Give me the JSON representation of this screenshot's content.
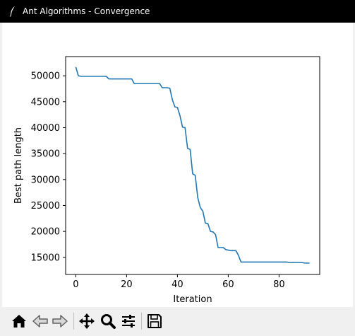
{
  "window": {
    "title": "Ant Algorithms - Convergence",
    "icon": "feather-icon"
  },
  "toolbar": {
    "buttons": [
      {
        "name": "home",
        "icon": "home-icon"
      },
      {
        "name": "back",
        "icon": "arrow-left-icon"
      },
      {
        "name": "forward",
        "icon": "arrow-right-icon"
      },
      {
        "name": "pan",
        "icon": "move-icon"
      },
      {
        "name": "zoom",
        "icon": "zoom-icon"
      },
      {
        "name": "configure-subplots",
        "icon": "sliders-icon"
      },
      {
        "name": "save",
        "icon": "floppy-disk-icon"
      }
    ]
  },
  "chart_data": {
    "type": "line",
    "title": "",
    "xlabel": "Iteration",
    "ylabel": "Best path length",
    "xlim": [
      -4,
      96
    ],
    "ylim": [
      11700,
      53700
    ],
    "xticks": [
      0,
      20,
      40,
      60,
      80
    ],
    "yticks": [
      15000,
      20000,
      25000,
      30000,
      35000,
      40000,
      45000,
      50000
    ],
    "grid": false,
    "color": "#1f77b4",
    "x": [
      0,
      1,
      2,
      3,
      4,
      5,
      6,
      7,
      8,
      9,
      10,
      11,
      12,
      13,
      14,
      15,
      16,
      17,
      18,
      19,
      20,
      21,
      22,
      23,
      24,
      25,
      26,
      27,
      28,
      29,
      30,
      31,
      32,
      33,
      34,
      35,
      36,
      37,
      38,
      39,
      40,
      41,
      42,
      43,
      44,
      45,
      46,
      47,
      48,
      49,
      50,
      51,
      52,
      53,
      54,
      55,
      56,
      57,
      58,
      59,
      60,
      61,
      62,
      63,
      64,
      65,
      66,
      67,
      68,
      69,
      70,
      71,
      72,
      73,
      74,
      75,
      76,
      77,
      78,
      79,
      80,
      81,
      82,
      83,
      84,
      85,
      86,
      87,
      88,
      89,
      90,
      91,
      92
    ],
    "y": [
      51700,
      50000,
      49900,
      49900,
      49900,
      49900,
      49900,
      49900,
      49900,
      49900,
      49900,
      49900,
      49900,
      49400,
      49400,
      49400,
      49400,
      49400,
      49400,
      49400,
      49400,
      49400,
      49400,
      48500,
      48500,
      48500,
      48500,
      48500,
      48500,
      48500,
      48500,
      48500,
      48500,
      48500,
      47700,
      47700,
      47700,
      47600,
      45400,
      44000,
      43900,
      42300,
      40100,
      40000,
      36000,
      35800,
      31100,
      30800,
      26500,
      24600,
      23900,
      21600,
      21500,
      20000,
      19900,
      19400,
      16900,
      16900,
      16900,
      16500,
      16400,
      16300,
      16300,
      16300,
      15400,
      14100,
      14100,
      14100,
      14100,
      14100,
      14100,
      14100,
      14100,
      14100,
      14100,
      14100,
      14100,
      14100,
      14100,
      14100,
      14100,
      14100,
      14100,
      14100,
      14000,
      14000,
      14000,
      14000,
      14000,
      14000,
      13900,
      13900,
      13900
    ]
  }
}
